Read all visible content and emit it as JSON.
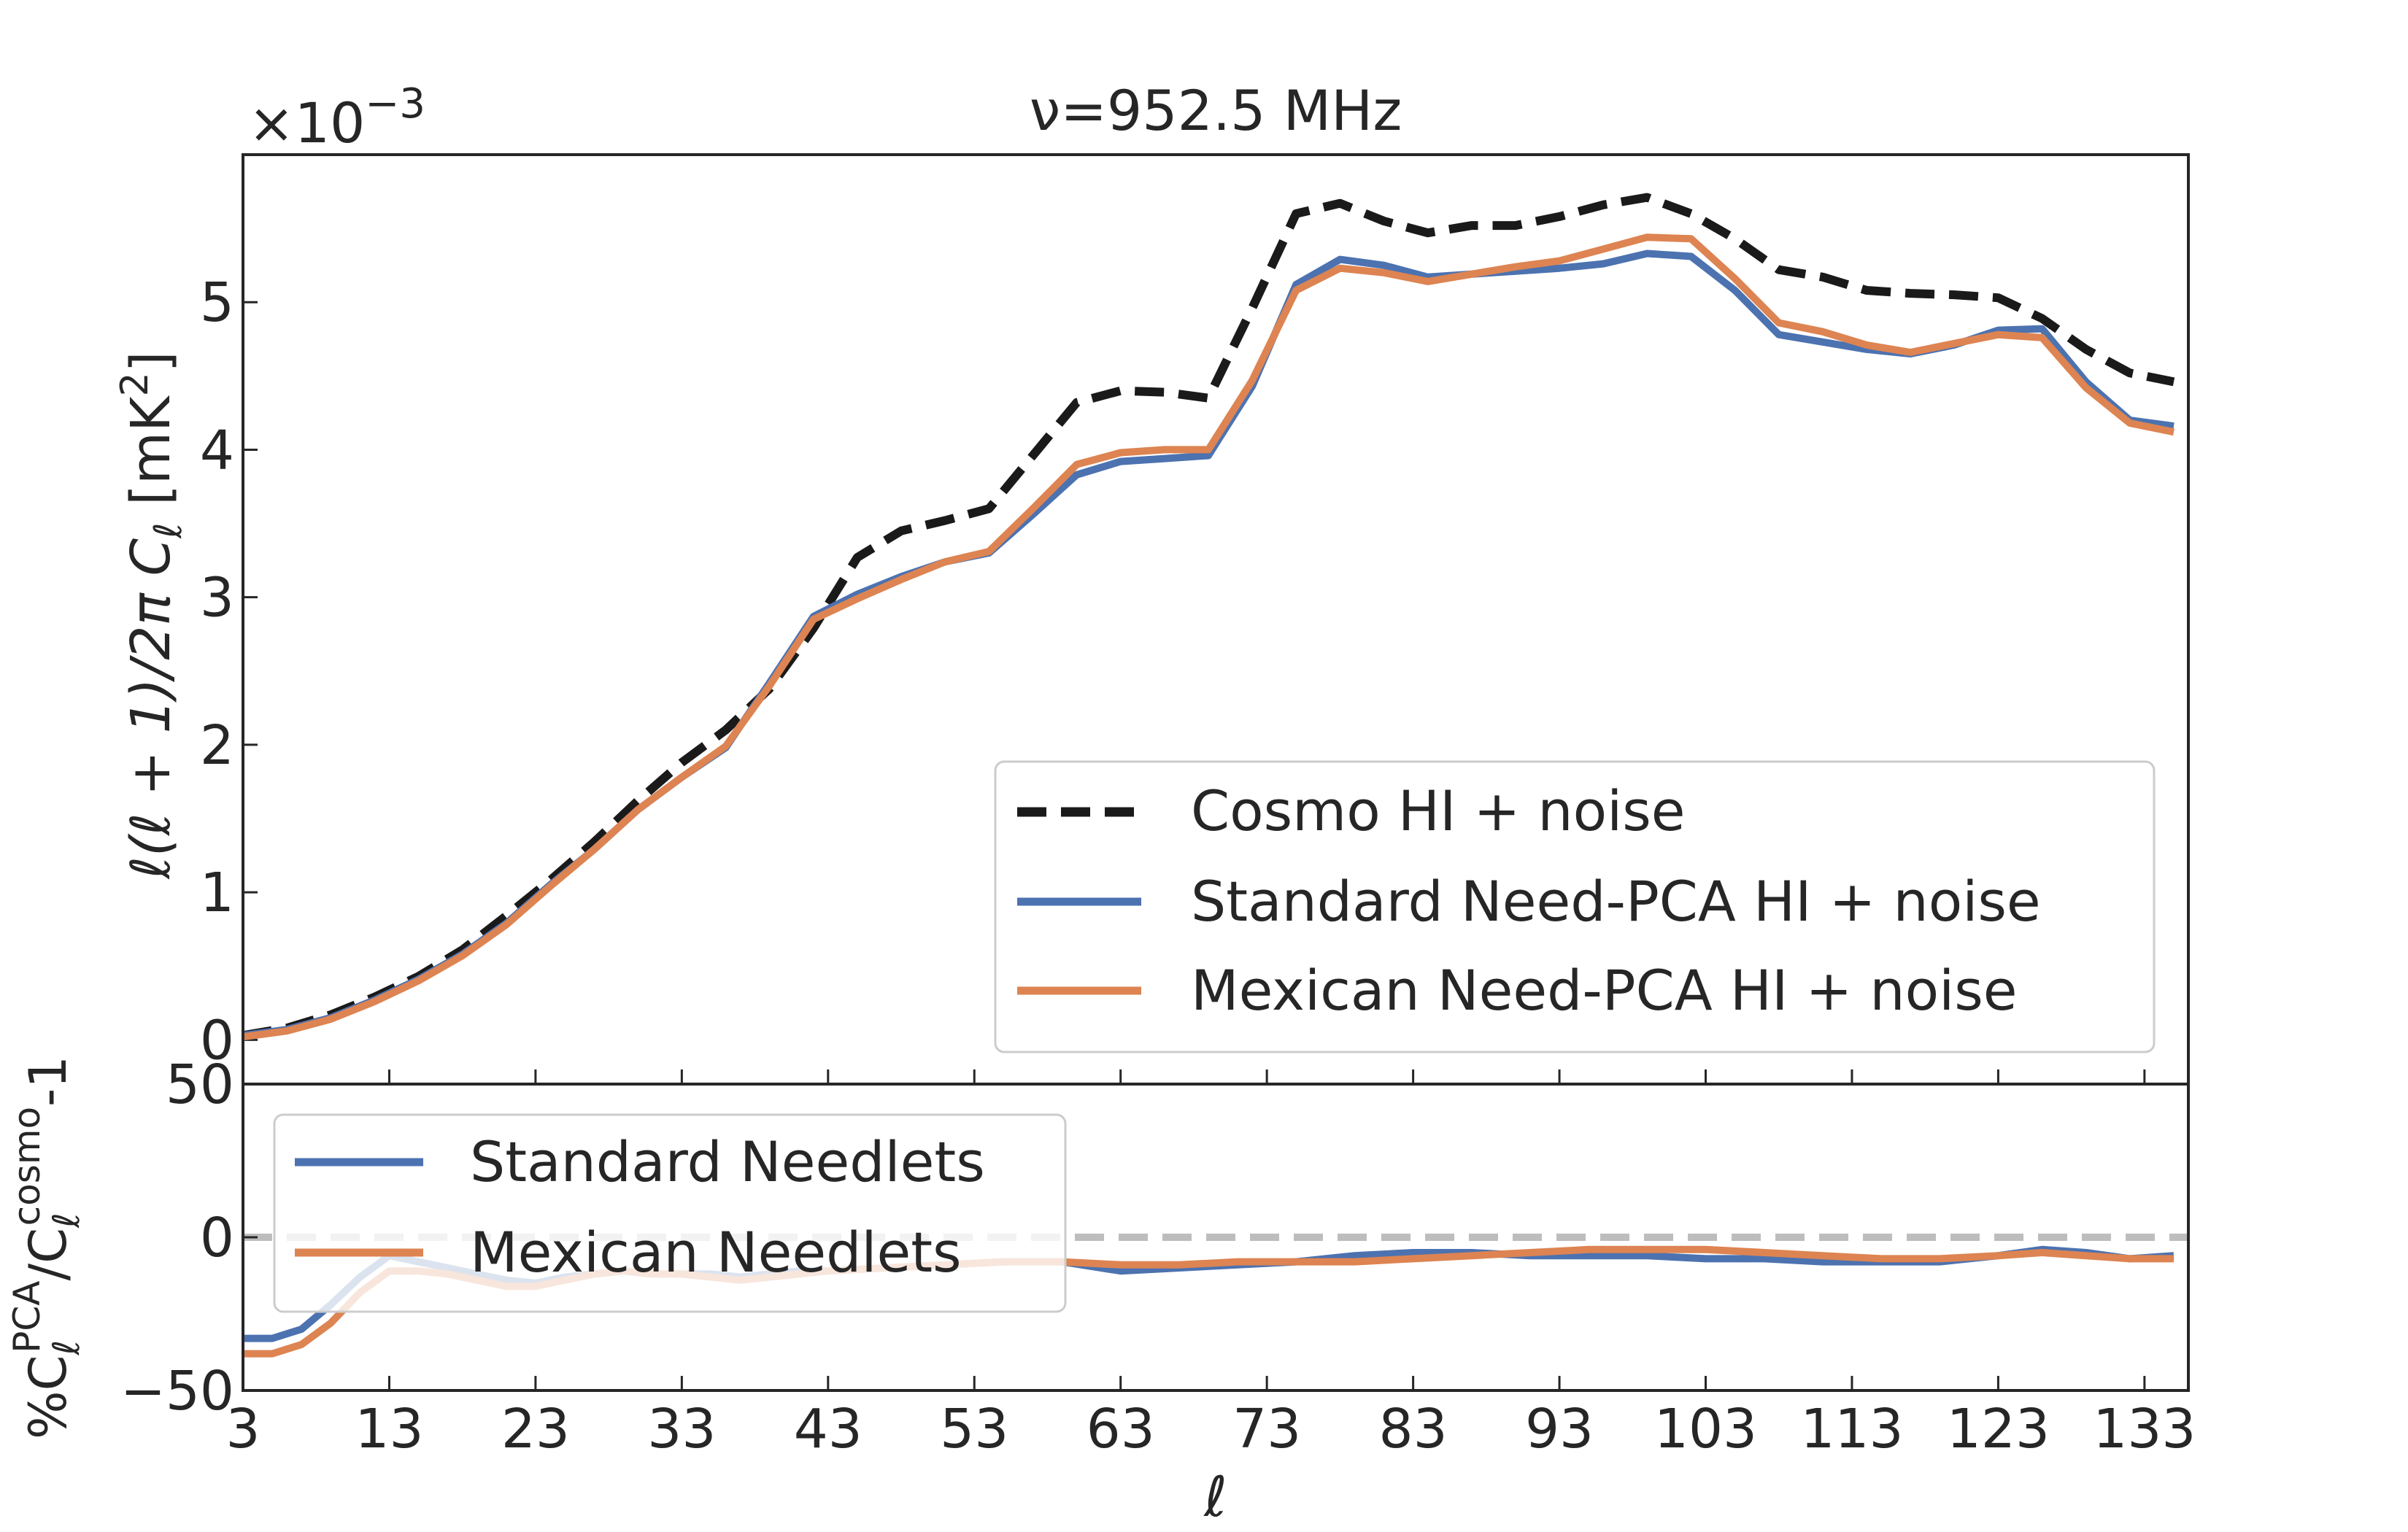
{
  "chart_data": [
    {
      "type": "line",
      "panel": "top",
      "title": "ν=952.5 MHz",
      "ylabel": "ℓ(ℓ + 1)/2π C_ℓ [mK²]",
      "ylabel_parts": {
        "main": "ℓ(ℓ + 1)/2π C",
        "sub": "ℓ",
        "unit": "[mK",
        "sup": "2",
        "close": "]"
      },
      "offset_text": {
        "base": "×10",
        "exp": "−3"
      },
      "xlim": [
        3,
        136
      ],
      "ylim": [
        -0.3,
        6.0
      ],
      "y_scale_note": "×10^-3",
      "yticks": [
        0,
        1,
        2,
        3,
        4,
        5
      ],
      "yticklabels": [
        "0",
        "1",
        "2",
        "3",
        "4",
        "5"
      ],
      "xticks": [
        3,
        13,
        23,
        33,
        43,
        53,
        63,
        73,
        83,
        93,
        103,
        113,
        123,
        133
      ],
      "legend_position": "lower-right",
      "series": [
        {
          "name": "Cosmo HI + noise",
          "color": "#1a1a1a",
          "style": "dashed",
          "x": [
            3,
            6,
            9,
            12,
            15,
            18,
            21,
            24,
            27,
            30,
            33,
            36,
            39,
            42,
            45,
            48,
            51,
            54,
            57,
            60,
            63,
            66,
            69,
            72,
            75,
            78,
            81,
            84,
            87,
            90,
            93,
            96,
            99,
            102,
            105,
            108,
            111,
            114,
            117,
            120,
            123,
            126,
            129,
            132,
            135
          ],
          "y": [
            0.03,
            0.08,
            0.17,
            0.29,
            0.43,
            0.61,
            0.84,
            1.08,
            1.34,
            1.62,
            1.88,
            2.1,
            2.38,
            2.79,
            3.27,
            3.45,
            3.52,
            3.6,
            3.96,
            4.32,
            4.4,
            4.39,
            4.35,
            4.96,
            5.6,
            5.67,
            5.55,
            5.47,
            5.52,
            5.52,
            5.58,
            5.66,
            5.71,
            5.6,
            5.43,
            5.22,
            5.17,
            5.08,
            5.06,
            5.05,
            5.03,
            4.89,
            4.68,
            4.52,
            4.46
          ]
        },
        {
          "name": "Standard Need-PCA HI + noise",
          "color": "#4c72b0",
          "style": "solid",
          "x": [
            3,
            6,
            9,
            12,
            15,
            18,
            21,
            24,
            27,
            30,
            33,
            36,
            39,
            42,
            45,
            48,
            51,
            54,
            57,
            60,
            63,
            66,
            69,
            72,
            75,
            78,
            81,
            84,
            87,
            90,
            93,
            96,
            99,
            102,
            105,
            108,
            111,
            114,
            117,
            120,
            123,
            126,
            129,
            132,
            135
          ],
          "y": [
            0.03,
            0.07,
            0.15,
            0.27,
            0.41,
            0.58,
            0.79,
            1.05,
            1.29,
            1.56,
            1.78,
            1.98,
            2.42,
            2.87,
            3.02,
            3.14,
            3.24,
            3.3,
            3.56,
            3.83,
            3.92,
            3.94,
            3.96,
            4.43,
            5.12,
            5.29,
            5.25,
            5.17,
            5.19,
            5.21,
            5.23,
            5.26,
            5.33,
            5.31,
            5.08,
            4.78,
            4.73,
            4.68,
            4.65,
            4.71,
            4.81,
            4.82,
            4.46,
            4.2,
            4.16
          ]
        },
        {
          "name": "Mexican Need-PCA HI + noise",
          "color": "#dd8452",
          "style": "solid",
          "x": [
            3,
            6,
            9,
            12,
            15,
            18,
            21,
            24,
            27,
            30,
            33,
            36,
            39,
            42,
            45,
            48,
            51,
            54,
            57,
            60,
            63,
            66,
            69,
            72,
            75,
            78,
            81,
            84,
            87,
            90,
            93,
            96,
            99,
            102,
            105,
            108,
            111,
            114,
            117,
            120,
            123,
            126,
            129,
            132,
            135
          ],
          "y": [
            0.02,
            0.06,
            0.14,
            0.26,
            0.4,
            0.57,
            0.78,
            1.04,
            1.29,
            1.56,
            1.78,
            1.99,
            2.4,
            2.85,
            2.99,
            3.12,
            3.24,
            3.31,
            3.6,
            3.9,
            3.98,
            4.0,
            4.0,
            4.47,
            5.08,
            5.23,
            5.2,
            5.14,
            5.19,
            5.24,
            5.28,
            5.36,
            5.44,
            5.43,
            5.16,
            4.86,
            4.8,
            4.71,
            4.66,
            4.72,
            4.78,
            4.76,
            4.42,
            4.18,
            4.12
          ]
        }
      ]
    },
    {
      "type": "line",
      "panel": "bottom",
      "xlabel": "ℓ",
      "ylabel": "%C_ℓ^PCA/C_ℓ^cosmo-1",
      "ylabel_parts": {
        "pct": "%C",
        "sub1": "ℓ",
        "sup1": "PCA",
        "slash": "/C",
        "sub2": "ℓ",
        "sup2": "cosmo",
        "tail": "-1"
      },
      "xlim": [
        3,
        136
      ],
      "ylim": [
        -50,
        50
      ],
      "yticks": [
        -50,
        0,
        50
      ],
      "yticklabels": [
        "−50",
        "0",
        "50"
      ],
      "xticks": [
        3,
        13,
        23,
        33,
        43,
        53,
        63,
        73,
        83,
        93,
        103,
        113,
        123,
        133
      ],
      "xticklabels": [
        "3",
        "13",
        "23",
        "33",
        "43",
        "53",
        "63",
        "73",
        "83",
        "93",
        "103",
        "113",
        "123",
        "133"
      ],
      "reference_line": {
        "y": 0,
        "color": "#bdbdbd",
        "style": "dashed"
      },
      "legend_position": "upper-left",
      "series": [
        {
          "name": "Standard Needlets",
          "color": "#4c72b0",
          "style": "solid",
          "x": [
            3,
            5,
            7,
            9,
            11,
            13,
            15,
            17,
            19,
            21,
            23,
            25,
            27,
            29,
            31,
            33,
            35,
            37,
            39,
            41,
            43,
            47,
            51,
            55,
            59,
            63,
            67,
            71,
            75,
            79,
            83,
            87,
            91,
            95,
            99,
            103,
            107,
            111,
            115,
            119,
            123,
            126,
            129,
            132,
            135
          ],
          "y": [
            -33,
            -33,
            -30,
            -22,
            -13,
            -6,
            -8,
            -10,
            -12,
            -14,
            -15,
            -13,
            -12,
            -11,
            -12,
            -12,
            -12,
            -13,
            -12,
            -11,
            -11,
            -10,
            -9,
            -8,
            -8,
            -11,
            -10,
            -9,
            -8,
            -6,
            -5,
            -5,
            -6,
            -6,
            -6,
            -7,
            -7,
            -8,
            -8,
            -8,
            -6,
            -4,
            -5,
            -7,
            -6
          ]
        },
        {
          "name": "Mexican Needlets",
          "color": "#dd8452",
          "style": "solid",
          "x": [
            3,
            5,
            7,
            9,
            11,
            13,
            15,
            17,
            19,
            21,
            23,
            25,
            27,
            29,
            31,
            33,
            35,
            37,
            39,
            41,
            43,
            47,
            51,
            55,
            59,
            63,
            67,
            71,
            75,
            79,
            83,
            87,
            91,
            95,
            99,
            103,
            107,
            111,
            115,
            119,
            123,
            126,
            129,
            132,
            135
          ],
          "y": [
            -38,
            -38,
            -35,
            -28,
            -18,
            -11,
            -11,
            -12,
            -14,
            -16,
            -16,
            -14,
            -12,
            -11,
            -12,
            -12,
            -13,
            -14,
            -13,
            -12,
            -11,
            -10,
            -9,
            -8,
            -8,
            -9,
            -9,
            -8,
            -8,
            -8,
            -7,
            -6,
            -5,
            -4,
            -4,
            -4,
            -5,
            -6,
            -7,
            -7,
            -6,
            -5,
            -6,
            -7,
            -7
          ]
        }
      ]
    }
  ]
}
